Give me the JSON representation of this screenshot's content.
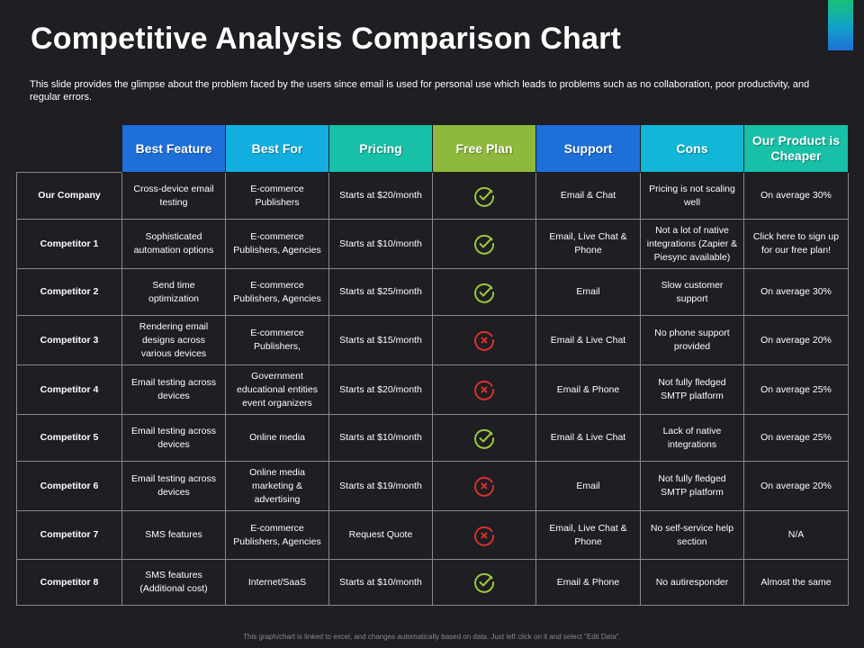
{
  "title": "Competitive Analysis Comparison Chart",
  "subtitle": "This slide provides the glimpse about the problem faced by the users since email is used for personal use which leads to problems such as no collaboration, poor productivity,  and regular errors.",
  "footer": "This graph/chart is linked to excel, and changes automatically based on data. Just left click on it and select \"Edit Data\".",
  "colors": {
    "check": "#9bc93a",
    "cross": "#d9302b",
    "accent_blue": "#1f6fd8",
    "accent_cyan": "#12aee0",
    "accent_teal": "#18c0a8",
    "accent_green": "#8fb93c"
  },
  "headers": [
    "Best Feature",
    "Best For",
    "Pricing",
    "Free Plan",
    "Support",
    "Cons",
    "Our Product is Cheaper"
  ],
  "rows": [
    {
      "label": "Our Company",
      "best_feature": "Cross-device email testing",
      "best_for": "E-commerce Publishers",
      "pricing": "Starts at $20/month",
      "free_plan": "check-icon",
      "support": "Email & Chat",
      "cons": "Pricing is not scaling well",
      "cheaper": "On average 30%"
    },
    {
      "label": "Competitor 1",
      "best_feature": "Sophisticated automation options",
      "best_for": "E-commerce Publishers, Agencies",
      "pricing": "Starts at $10/month",
      "free_plan": "check-icon",
      "support": "Email, Live Chat & Phone",
      "cons": "Not a lot of native integrations (Zapier & Piesync available)",
      "cheaper": "Click here to sign up for our free plan!"
    },
    {
      "label": "Competitor 2",
      "best_feature": "Send time optimization",
      "best_for": "E-commerce Publishers, Agencies",
      "pricing": "Starts at $25/month",
      "free_plan": "check-icon",
      "support": "Email",
      "cons": "Slow customer support",
      "cheaper": "On average 30%"
    },
    {
      "label": "Competitor 3",
      "best_feature": "Rendering email designs across various devices",
      "best_for": "E-commerce Publishers,",
      "pricing": "Starts at $15/month",
      "free_plan": "cross-icon",
      "support": "Email & Live Chat",
      "cons": "No phone support provided",
      "cheaper": "On average 20%"
    },
    {
      "label": "Competitor 4",
      "best_feature": "Email testing across devices",
      "best_for": "Government educational entities event organizers",
      "pricing": "Starts at $20/month",
      "free_plan": "cross-icon",
      "support": "Email & Phone",
      "cons": "Not fully fledged SMTP platform",
      "cheaper": "On average 25%"
    },
    {
      "label": "Competitor 5",
      "best_feature": "Email testing across devices",
      "best_for": "Online media",
      "pricing": "Starts at $10/month",
      "free_plan": "check-icon",
      "support": "Email & Live Chat",
      "cons": "Lack of native integrations",
      "cheaper": "On average 25%"
    },
    {
      "label": "Competitor 6",
      "best_feature": "Email testing across devices",
      "best_for": "Online media marketing & advertising",
      "pricing": "Starts at $19/month",
      "free_plan": "cross-icon",
      "support": "Email",
      "cons": "Not fully fledged SMTP platform",
      "cheaper": "On average 20%"
    },
    {
      "label": "Competitor 7",
      "best_feature": "SMS features",
      "best_for": "E-commerce Publishers, Agencies",
      "pricing": "Request Quote",
      "free_plan": "cross-icon",
      "support": "Email, Live Chat & Phone",
      "cons": "No self-service help section",
      "cheaper": "N/A"
    },
    {
      "label": "Competitor 8",
      "best_feature": "SMS features (Additional cost)",
      "best_for": "Internet/SaaS",
      "pricing": "Starts at $10/month",
      "free_plan": "check-icon",
      "support": "Email & Phone",
      "cons": "No autiresponder",
      "cheaper": "Almost the same"
    }
  ]
}
